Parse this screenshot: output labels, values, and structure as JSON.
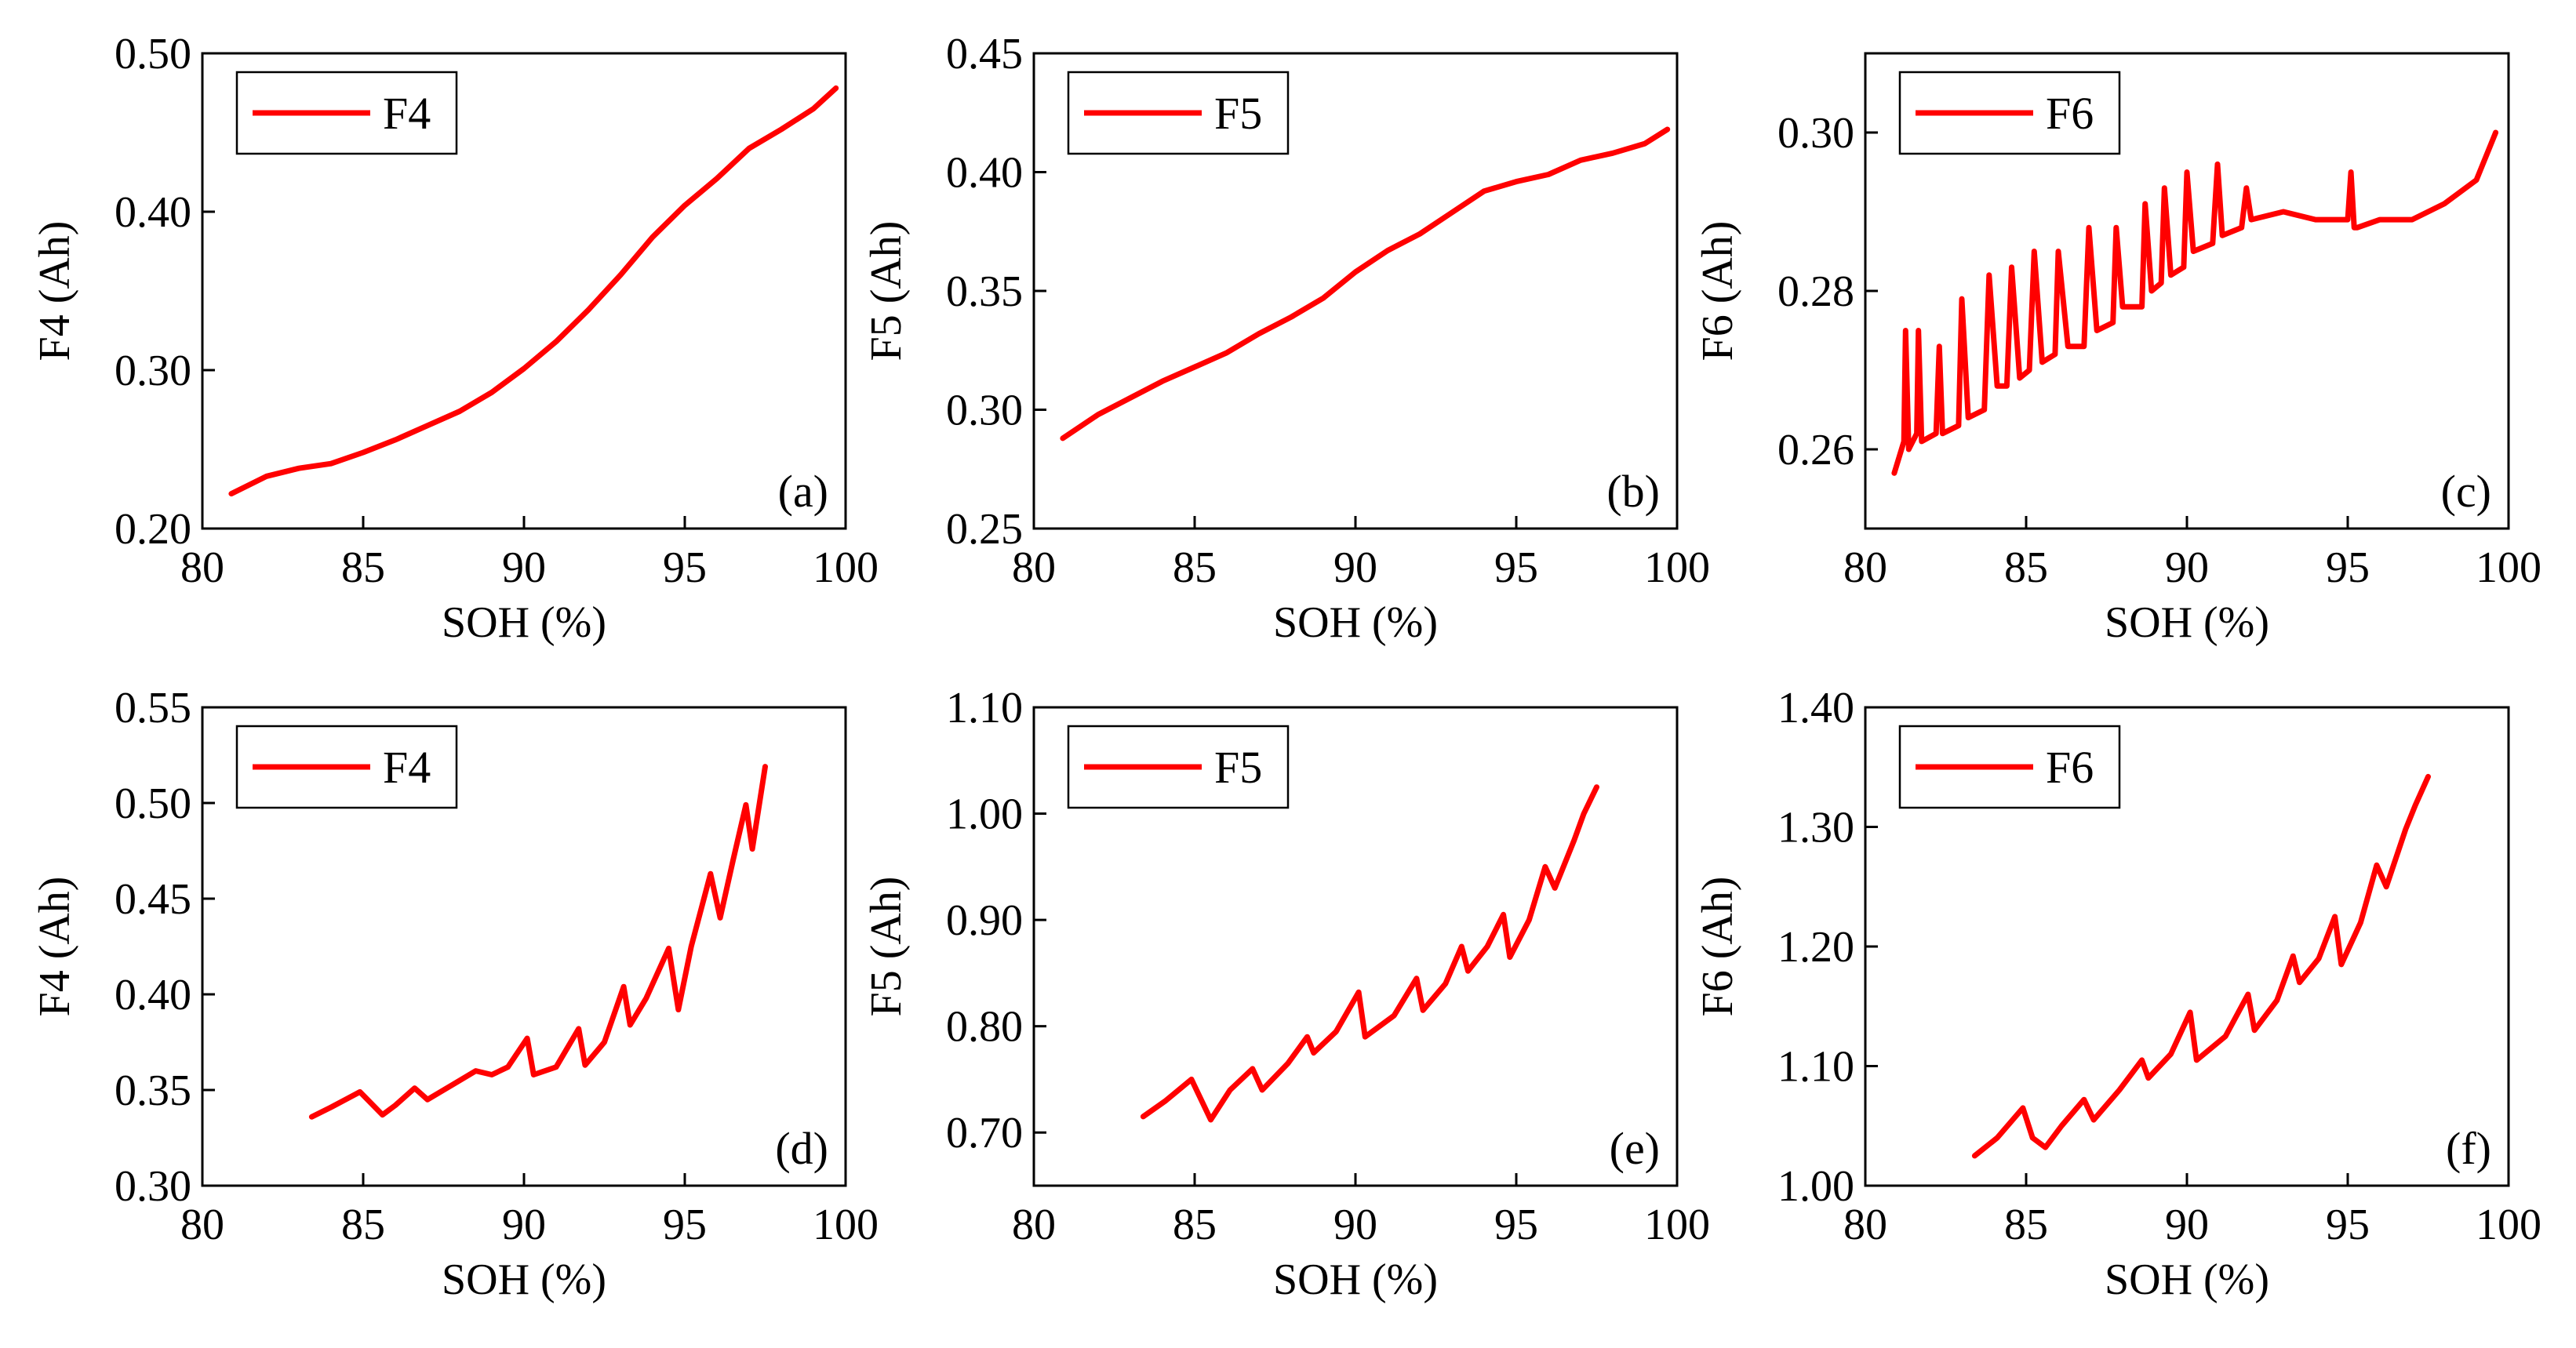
{
  "chart_data": [
    {
      "type": "line",
      "panel_label": "(a)",
      "xlabel": "SOH (%)",
      "ylabel": "F4 (Ah)",
      "xlim": [
        80,
        100
      ],
      "ylim": [
        0.2,
        0.5
      ],
      "x_ticks": [
        "80",
        "85",
        "90",
        "95",
        "100"
      ],
      "y_ticks": [
        "0.20",
        "0.30",
        "0.40",
        "0.50"
      ],
      "legend_position": "top-left",
      "series": [
        {
          "name": "F4",
          "color": "#ff0000",
          "x": [
            80.9,
            82,
            83,
            84,
            85,
            86,
            87,
            88,
            89,
            90,
            91,
            92,
            93,
            94,
            95,
            96,
            97,
            98,
            99,
            99.7
          ],
          "y": [
            0.222,
            0.233,
            0.238,
            0.241,
            0.248,
            0.256,
            0.265,
            0.274,
            0.286,
            0.301,
            0.318,
            0.338,
            0.36,
            0.384,
            0.404,
            0.421,
            0.44,
            0.452,
            0.465,
            0.478
          ]
        }
      ]
    },
    {
      "type": "line",
      "panel_label": "(b)",
      "xlabel": "SOH (%)",
      "ylabel": "F5 (Ah)",
      "xlim": [
        80,
        100
      ],
      "ylim": [
        0.25,
        0.45
      ],
      "x_ticks": [
        "80",
        "85",
        "90",
        "95",
        "100"
      ],
      "y_ticks": [
        "0.25",
        "0.30",
        "0.35",
        "0.40",
        "0.45"
      ],
      "legend_position": "top-left",
      "series": [
        {
          "name": "F5",
          "color": "#ff0000",
          "x": [
            80.9,
            82,
            83,
            84,
            85,
            86,
            87,
            88,
            89,
            90,
            91,
            92,
            93,
            94,
            95,
            96,
            97,
            98,
            99,
            99.7
          ],
          "y": [
            0.288,
            0.298,
            0.305,
            0.312,
            0.318,
            0.324,
            0.332,
            0.339,
            0.347,
            0.358,
            0.367,
            0.374,
            0.383,
            0.392,
            0.396,
            0.399,
            0.405,
            0.408,
            0.412,
            0.418
          ]
        }
      ]
    },
    {
      "type": "line",
      "panel_label": "(c)",
      "xlabel": "SOH (%)",
      "ylabel": "F6 (Ah)",
      "xlim": [
        80,
        100
      ],
      "ylim": [
        0.25,
        0.31
      ],
      "x_ticks": [
        "80",
        "85",
        "90",
        "95",
        "100"
      ],
      "y_ticks": [
        "0.26",
        "0.28",
        "0.30"
      ],
      "legend_position": "top-left",
      "series": [
        {
          "name": "F6",
          "color": "#ff0000",
          "x": [
            80.9,
            81.2,
            81.25,
            81.35,
            81.6,
            81.65,
            81.75,
            82.2,
            82.3,
            82.4,
            82.9,
            83,
            83.2,
            83.7,
            83.85,
            84.1,
            84.4,
            84.55,
            84.8,
            85.1,
            85.25,
            85.5,
            85.9,
            86,
            86.3,
            86.8,
            86.95,
            87.2,
            87.7,
            87.8,
            88,
            88.6,
            88.7,
            88.9,
            89.2,
            89.3,
            89.5,
            89.9,
            90,
            90.2,
            90.8,
            90.95,
            91.1,
            91.7,
            91.85,
            92,
            93,
            94,
            95,
            95.1,
            95.2,
            95.3,
            96,
            97,
            98,
            99,
            99.6
          ],
          "y": [
            0.257,
            0.261,
            0.275,
            0.26,
            0.262,
            0.275,
            0.261,
            0.262,
            0.273,
            0.262,
            0.263,
            0.279,
            0.264,
            0.265,
            0.282,
            0.268,
            0.268,
            0.283,
            0.269,
            0.27,
            0.285,
            0.271,
            0.272,
            0.285,
            0.273,
            0.273,
            0.288,
            0.275,
            0.276,
            0.288,
            0.278,
            0.278,
            0.291,
            0.28,
            0.281,
            0.293,
            0.282,
            0.283,
            0.295,
            0.285,
            0.286,
            0.296,
            0.287,
            0.288,
            0.293,
            0.289,
            0.29,
            0.289,
            0.289,
            0.295,
            0.288,
            0.288,
            0.289,
            0.289,
            0.291,
            0.294,
            0.3
          ]
        }
      ]
    },
    {
      "type": "line",
      "panel_label": "(d)",
      "xlabel": "SOH (%)",
      "ylabel": "F4 (Ah)",
      "xlim": [
        80,
        100
      ],
      "ylim": [
        0.3,
        0.55
      ],
      "x_ticks": [
        "80",
        "85",
        "90",
        "95",
        "100"
      ],
      "y_ticks": [
        "0.30",
        "0.35",
        "0.40",
        "0.45",
        "0.50",
        "0.55"
      ],
      "legend_position": "top-left",
      "series": [
        {
          "name": "F4",
          "color": "#ff0000",
          "x": [
            83.4,
            84,
            84.9,
            85.6,
            86,
            86.6,
            87,
            87.8,
            88.5,
            89,
            89.5,
            90.1,
            90.3,
            91,
            91.7,
            91.9,
            92.5,
            93.1,
            93.3,
            93.8,
            94.5,
            94.8,
            95.2,
            95.8,
            96.1,
            96.5,
            96.9,
            97.1,
            97.5
          ],
          "y": [
            0.336,
            0.341,
            0.349,
            0.337,
            0.342,
            0.351,
            0.345,
            0.353,
            0.36,
            0.358,
            0.362,
            0.377,
            0.358,
            0.362,
            0.382,
            0.363,
            0.375,
            0.404,
            0.384,
            0.398,
            0.424,
            0.392,
            0.425,
            0.463,
            0.44,
            0.47,
            0.499,
            0.476,
            0.519
          ]
        }
      ]
    },
    {
      "type": "line",
      "panel_label": "(e)",
      "xlabel": "SOH (%)",
      "ylabel": "F5 (Ah)",
      "xlim": [
        80,
        100
      ],
      "ylim": [
        0.65,
        1.1
      ],
      "x_ticks": [
        "80",
        "85",
        "90",
        "95",
        "100"
      ],
      "y_ticks": [
        "0.70",
        "0.80",
        "0.90",
        "1.00",
        "1.10"
      ],
      "legend_position": "top-left",
      "series": [
        {
          "name": "F5",
          "color": "#ff0000",
          "x": [
            83.4,
            84.1,
            84.9,
            85.5,
            86.1,
            86.8,
            87.1,
            87.9,
            88.5,
            88.7,
            89.4,
            90.1,
            90.3,
            91.2,
            91.9,
            92.1,
            92.8,
            93.3,
            93.5,
            94.1,
            94.6,
            94.8,
            95.4,
            95.9,
            96.2,
            96.8,
            97.1,
            97.5
          ],
          "y": [
            0.715,
            0.73,
            0.75,
            0.712,
            0.74,
            0.76,
            0.74,
            0.765,
            0.79,
            0.775,
            0.795,
            0.832,
            0.79,
            0.81,
            0.845,
            0.815,
            0.84,
            0.875,
            0.852,
            0.875,
            0.905,
            0.865,
            0.9,
            0.95,
            0.93,
            0.975,
            1.0,
            1.025
          ]
        }
      ]
    },
    {
      "type": "line",
      "panel_label": "(f)",
      "xlabel": "SOH (%)",
      "ylabel": "F6 (Ah)",
      "xlim": [
        80,
        100
      ],
      "ylim": [
        1.0,
        1.4
      ],
      "x_ticks": [
        "80",
        "85",
        "90",
        "95",
        "100"
      ],
      "y_ticks": [
        "1.00",
        "1.10",
        "1.20",
        "1.30",
        "1.40"
      ],
      "legend_position": "top-left",
      "series": [
        {
          "name": "F6",
          "color": "#ff0000",
          "x": [
            83.4,
            84.1,
            84.9,
            85.2,
            85.6,
            86.1,
            86.8,
            87.1,
            87.9,
            88.6,
            88.8,
            89.5,
            90.1,
            90.3,
            91.2,
            91.9,
            92.1,
            92.8,
            93.3,
            93.5,
            94.1,
            94.6,
            94.8,
            95.4,
            95.9,
            96.2,
            96.8,
            97.1,
            97.5
          ],
          "y": [
            1.025,
            1.04,
            1.065,
            1.04,
            1.032,
            1.05,
            1.072,
            1.055,
            1.08,
            1.105,
            1.09,
            1.11,
            1.145,
            1.105,
            1.125,
            1.16,
            1.13,
            1.155,
            1.192,
            1.17,
            1.19,
            1.225,
            1.185,
            1.22,
            1.268,
            1.25,
            1.298,
            1.318,
            1.342
          ]
        }
      ]
    }
  ]
}
